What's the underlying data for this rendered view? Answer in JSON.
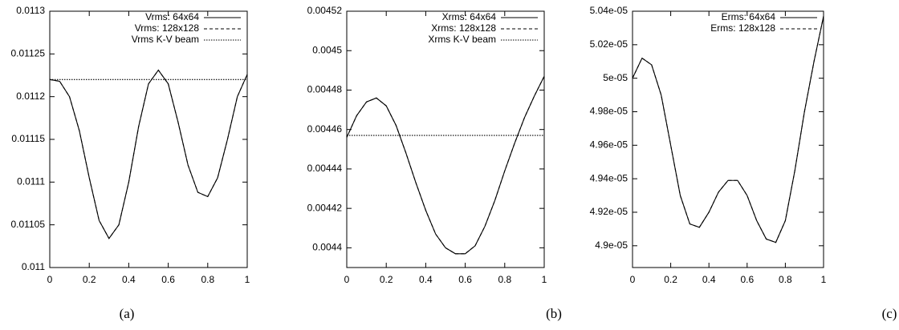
{
  "chart_data": [
    {
      "type": "line",
      "caption": "(a)",
      "legend": "top-right",
      "x": [
        0,
        0.05,
        0.1,
        0.15,
        0.2,
        0.25,
        0.3,
        0.35,
        0.4,
        0.45,
        0.5,
        0.55,
        0.6,
        0.65,
        0.7,
        0.75,
        0.8,
        0.85,
        0.9,
        0.95,
        1
      ],
      "xlim": [
        0,
        1
      ],
      "xticks": [
        0,
        0.2,
        0.4,
        0.6,
        0.8,
        1
      ],
      "ylim": [
        0.011,
        0.0113
      ],
      "yticks": [
        0.011,
        0.01105,
        0.0111,
        0.01115,
        0.0112,
        0.01125,
        0.0113
      ],
      "series": [
        {
          "name": "Vrms: 64x64",
          "color": "#000000",
          "style": "solid",
          "values": [
            0.01122,
            0.011218,
            0.0112,
            0.01116,
            0.011105,
            0.011055,
            0.011034,
            0.01105,
            0.0111,
            0.011165,
            0.011215,
            0.011231,
            0.011215,
            0.01117,
            0.01112,
            0.011088,
            0.011083,
            0.011105,
            0.01115,
            0.0112,
            0.011226
          ]
        },
        {
          "name": "Vrms: 128x128",
          "color": "#000000",
          "style": "dashed",
          "values": [
            0.01122,
            0.011218,
            0.0112,
            0.01116,
            0.011105,
            0.011055,
            0.011034,
            0.01105,
            0.0111,
            0.011165,
            0.011215,
            0.011231,
            0.011215,
            0.01117,
            0.01112,
            0.011088,
            0.011083,
            0.011105,
            0.01115,
            0.0112,
            0.011226
          ]
        },
        {
          "name": "Vrms K-V beam",
          "color": "#000000",
          "style": "dotted",
          "values": [
            0.01122,
            0.01122,
            0.01122,
            0.01122,
            0.01122,
            0.01122,
            0.01122,
            0.01122,
            0.01122,
            0.01122,
            0.01122,
            0.01122,
            0.01122,
            0.01122,
            0.01122,
            0.01122,
            0.01122,
            0.01122,
            0.01122,
            0.01122,
            0.01122
          ]
        }
      ]
    },
    {
      "type": "line",
      "caption": "(b)",
      "legend": "top-right",
      "x": [
        0,
        0.05,
        0.1,
        0.15,
        0.2,
        0.25,
        0.3,
        0.35,
        0.4,
        0.45,
        0.5,
        0.55,
        0.6,
        0.65,
        0.7,
        0.75,
        0.8,
        0.85,
        0.9,
        0.95,
        1
      ],
      "xlim": [
        0,
        1
      ],
      "xticks": [
        0,
        0.2,
        0.4,
        0.6,
        0.8,
        1
      ],
      "ylim": [
        0.00439,
        0.00452
      ],
      "yticks": [
        0.0044,
        0.00442,
        0.00444,
        0.00446,
        0.00448,
        0.0045,
        0.00452
      ],
      "series": [
        {
          "name": "Xrms: 64x64",
          "color": "#000000",
          "style": "solid",
          "values": [
            0.004456,
            0.004467,
            0.004474,
            0.004476,
            0.004472,
            0.004462,
            0.004448,
            0.004433,
            0.004419,
            0.004407,
            0.0044,
            0.004397,
            0.004397,
            0.004401,
            0.004411,
            0.004424,
            0.004439,
            0.004453,
            0.004466,
            0.004477,
            0.004487
          ]
        },
        {
          "name": "Xrms: 128x128",
          "color": "#000000",
          "style": "dashed",
          "values": [
            0.004456,
            0.004467,
            0.004474,
            0.004476,
            0.004472,
            0.004462,
            0.004448,
            0.004433,
            0.004419,
            0.004407,
            0.0044,
            0.004397,
            0.004397,
            0.004401,
            0.004411,
            0.004424,
            0.004439,
            0.004453,
            0.004466,
            0.004477,
            0.004487
          ]
        },
        {
          "name": "Xrms K-V beam",
          "color": "#000000",
          "style": "dotted",
          "values": [
            0.004457,
            0.004457,
            0.004457,
            0.004457,
            0.004457,
            0.004457,
            0.004457,
            0.004457,
            0.004457,
            0.004457,
            0.004457,
            0.004457,
            0.004457,
            0.004457,
            0.004457,
            0.004457,
            0.004457,
            0.004457,
            0.004457,
            0.004457,
            0.004457
          ]
        }
      ]
    },
    {
      "type": "line",
      "caption": "(c)",
      "legend": "top-right",
      "x": [
        0,
        0.05,
        0.1,
        0.15,
        0.2,
        0.25,
        0.3,
        0.35,
        0.4,
        0.45,
        0.5,
        0.55,
        0.6,
        0.65,
        0.7,
        0.75,
        0.8,
        0.85,
        0.9,
        0.95,
        1
      ],
      "xlim": [
        0,
        1
      ],
      "xticks": [
        0,
        0.2,
        0.4,
        0.6,
        0.8,
        1
      ],
      "ylim": [
        4.887e-05,
        5.04e-05
      ],
      "yticks": [
        {
          "value": 4.9e-05,
          "label": "4.9e-05"
        },
        {
          "value": 4.92e-05,
          "label": "4.92e-05"
        },
        {
          "value": 4.94e-05,
          "label": "4.94e-05"
        },
        {
          "value": 4.96e-05,
          "label": "4.96e-05"
        },
        {
          "value": 4.98e-05,
          "label": "4.98e-05"
        },
        {
          "value": 5e-05,
          "label": "5e-05"
        },
        {
          "value": 5.02e-05,
          "label": "5.02e-05"
        },
        {
          "value": 5.04e-05,
          "label": "5.04e-05"
        }
      ],
      "series": [
        {
          "name": "Erms: 64x64",
          "color": "#000000",
          "style": "solid",
          "values": [
            5e-05,
            5.012e-05,
            5.008e-05,
            4.99e-05,
            4.96e-05,
            4.93e-05,
            4.913e-05,
            4.911e-05,
            4.92e-05,
            4.932e-05,
            4.939e-05,
            4.939e-05,
            4.93e-05,
            4.915e-05,
            4.904e-05,
            4.902e-05,
            4.915e-05,
            4.945e-05,
            4.98e-05,
            5.01e-05,
            5.037e-05
          ]
        },
        {
          "name": "Erms: 128x128",
          "color": "#000000",
          "style": "dashed",
          "values": [
            5e-05,
            5.012e-05,
            5.008e-05,
            4.99e-05,
            4.96e-05,
            4.93e-05,
            4.913e-05,
            4.911e-05,
            4.92e-05,
            4.932e-05,
            4.939e-05,
            4.939e-05,
            4.93e-05,
            4.915e-05,
            4.904e-05,
            4.902e-05,
            4.915e-05,
            4.945e-05,
            4.98e-05,
            5.01e-05,
            5.037e-05
          ]
        }
      ]
    }
  ]
}
